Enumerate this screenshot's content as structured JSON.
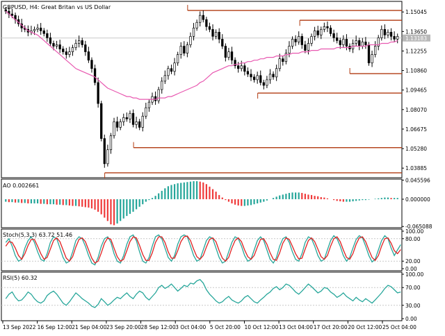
{
  "chart_data": [
    {
      "type": "candlestick",
      "title": "GBPUSD, H4:  Great Britan vs US Dollar",
      "price_ticks": [
        "1.15045",
        "1.13650",
        "1.12255",
        "1.10860",
        "1.09465",
        "1.08070",
        "1.06675",
        "1.05280",
        "1.03885"
      ],
      "current_price_label": "1.13183",
      "ylim": [
        1.032,
        1.158
      ],
      "close_series": [
        1.151,
        1.149,
        1.148,
        1.145,
        1.142,
        1.139,
        1.138,
        1.136,
        1.137,
        1.138,
        1.139,
        1.137,
        1.135,
        1.132,
        1.128,
        1.126,
        1.127,
        1.124,
        1.122,
        1.12,
        1.122,
        1.125,
        1.128,
        1.13,
        1.127,
        1.122,
        1.116,
        1.11,
        1.1,
        1.085,
        1.06,
        1.042,
        1.052,
        1.062,
        1.072,
        1.068,
        1.072,
        1.075,
        1.074,
        1.078,
        1.07,
        1.072,
        1.068,
        1.076,
        1.082,
        1.086,
        1.09,
        1.087,
        1.095,
        1.101,
        1.105,
        1.11,
        1.108,
        1.114,
        1.12,
        1.126,
        1.121,
        1.127,
        1.133,
        1.139,
        1.143,
        1.148,
        1.145,
        1.14,
        1.138,
        1.133,
        1.136,
        1.131,
        1.126,
        1.118,
        1.122,
        1.116,
        1.112,
        1.11,
        1.112,
        1.108,
        1.106,
        1.104,
        1.102,
        1.105,
        1.1,
        1.098,
        1.102,
        1.106,
        1.104,
        1.11,
        1.117,
        1.115,
        1.121,
        1.126,
        1.131,
        1.129,
        1.133,
        1.127,
        1.123,
        1.128,
        1.133,
        1.137,
        1.134,
        1.138,
        1.14,
        1.139,
        1.135,
        1.132,
        1.13,
        1.127,
        1.131,
        1.126,
        1.124,
        1.128,
        1.13,
        1.126,
        1.129,
        1.127,
        1.114,
        1.12,
        1.126,
        1.132,
        1.138,
        1.134,
        1.136,
        1.133,
        1.131,
        1.133
      ],
      "ma_series": [
        1.151,
        1.149,
        1.147,
        1.145,
        1.143,
        1.141,
        1.139,
        1.137,
        1.136,
        1.135,
        1.134,
        1.132,
        1.13,
        1.128,
        1.126,
        1.124,
        1.122,
        1.12,
        1.118,
        1.116,
        1.114,
        1.112,
        1.11,
        1.109,
        1.108,
        1.107,
        1.106,
        1.105,
        1.104,
        1.102,
        1.1,
        1.098,
        1.096,
        1.095,
        1.094,
        1.093,
        1.092,
        1.091,
        1.09,
        1.09,
        1.089,
        1.089,
        1.088,
        1.088,
        1.088,
        1.088,
        1.088,
        1.088,
        1.089,
        1.089,
        1.089,
        1.09,
        1.09,
        1.091,
        1.092,
        1.093,
        1.094,
        1.095,
        1.096,
        1.097,
        1.098,
        1.1,
        1.101,
        1.103,
        1.105,
        1.107,
        1.108,
        1.109,
        1.11,
        1.111,
        1.112,
        1.112,
        1.113,
        1.113,
        1.114,
        1.114,
        1.115,
        1.115,
        1.116,
        1.116,
        1.117,
        1.117,
        1.118,
        1.118,
        1.118,
        1.119,
        1.119,
        1.119,
        1.12,
        1.12,
        1.121,
        1.121,
        1.121,
        1.122,
        1.122,
        1.122,
        1.123,
        1.123,
        1.123,
        1.124,
        1.124,
        1.124,
        1.124,
        1.124,
        1.125,
        1.125,
        1.125,
        1.125,
        1.125,
        1.126,
        1.126,
        1.126,
        1.126,
        1.126,
        1.127,
        1.127,
        1.127,
        1.127,
        1.128,
        1.128,
        1.128,
        1.129,
        1.129,
        1.13
      ],
      "levels": [
        {
          "price": 1.1515,
          "x_start": 0.465
        },
        {
          "price": 1.1445,
          "x_start": 0.745
        },
        {
          "price": 1.1064,
          "x_start": 0.87
        },
        {
          "price": 1.0925,
          "x_start": 0.64
        },
        {
          "price": 1.0535,
          "x_start": 0.33
        },
        {
          "price": 1.0355,
          "x_start": 0.258
        }
      ]
    },
    {
      "type": "histogram",
      "title": "AO 0.002661",
      "ticks": [
        "0.045596",
        "0.000000",
        "-0.065088"
      ],
      "ylim": [
        -0.068,
        0.048
      ],
      "values": [
        -0.006,
        -0.007,
        -0.007,
        -0.008,
        -0.008,
        -0.009,
        -0.009,
        -0.01,
        -0.01,
        -0.01,
        -0.01,
        -0.011,
        -0.011,
        -0.012,
        -0.012,
        -0.012,
        -0.013,
        -0.013,
        -0.014,
        -0.014,
        -0.015,
        -0.016,
        -0.016,
        -0.017,
        -0.018,
        -0.019,
        -0.02,
        -0.022,
        -0.025,
        -0.03,
        -0.036,
        -0.044,
        -0.052,
        -0.06,
        -0.062,
        -0.058,
        -0.052,
        -0.046,
        -0.04,
        -0.035,
        -0.03,
        -0.024,
        -0.018,
        -0.012,
        -0.006,
        -0.002,
        0.003,
        0.008,
        0.014,
        0.02,
        0.026,
        0.031,
        0.034,
        0.036,
        0.038,
        0.039,
        0.04,
        0.041,
        0.042,
        0.043,
        0.043,
        0.042,
        0.04,
        0.036,
        0.03,
        0.024,
        0.018,
        0.01,
        0.004,
        -0.002,
        -0.006,
        -0.01,
        -0.013,
        -0.015,
        -0.016,
        -0.016,
        -0.015,
        -0.014,
        -0.012,
        -0.01,
        -0.008,
        -0.006,
        -0.003,
        0.0,
        0.003,
        0.006,
        0.009,
        0.011,
        0.013,
        0.015,
        0.016,
        0.016,
        0.016,
        0.015,
        0.013,
        0.011,
        0.01,
        0.008,
        0.007,
        0.005,
        0.004,
        0.002,
        0.0,
        -0.002,
        -0.004,
        -0.005,
        -0.006,
        -0.006,
        -0.006,
        -0.005,
        -0.004,
        -0.003,
        -0.002,
        -0.002,
        -0.001,
        0.0,
        0.001,
        0.002,
        0.003,
        0.004,
        0.004,
        0.003,
        0.003,
        0.003
      ]
    },
    {
      "type": "line",
      "title": "Stoch(5,3,3) 63.72 51.46",
      "ticks": [
        "100.00",
        "80.00",
        "20.00",
        "0.00"
      ],
      "ylim": [
        0,
        100
      ],
      "series": [
        {
          "values": [
            70,
            80,
            60,
            35,
            20,
            25,
            55,
            75,
            85,
            70,
            45,
            25,
            20,
            40,
            70,
            85,
            80,
            55,
            30,
            15,
            20,
            45,
            75,
            85,
            80,
            60,
            35,
            15,
            10,
            30,
            60,
            80,
            85,
            70,
            40,
            20,
            15,
            35,
            65,
            85,
            90,
            75,
            45,
            20,
            15,
            30,
            60,
            85,
            90,
            80,
            55,
            30,
            20,
            35,
            65,
            85,
            90,
            85,
            60,
            35,
            20,
            25,
            50,
            75,
            85,
            80,
            55,
            30,
            15,
            20,
            45,
            70,
            85,
            80,
            60,
            35,
            20,
            25,
            50,
            75,
            85,
            75,
            50,
            25,
            15,
            30,
            60,
            80,
            85,
            70,
            45,
            25,
            20,
            40,
            70,
            85,
            80,
            60,
            35,
            20,
            25,
            50,
            75,
            88,
            80,
            60,
            35,
            20,
            30,
            55,
            78,
            88,
            82,
            60,
            35,
            18,
            25,
            50,
            75,
            88,
            80,
            55,
            35,
            50,
            64
          ]
        },
        {
          "values": [
            60,
            72,
            70,
            55,
            35,
            25,
            40,
            62,
            78,
            78,
            60,
            40,
            25,
            30,
            52,
            75,
            82,
            72,
            50,
            28,
            20,
            32,
            58,
            78,
            82,
            72,
            50,
            28,
            15,
            20,
            42,
            68,
            82,
            78,
            55,
            32,
            20,
            25,
            48,
            72,
            85,
            82,
            62,
            38,
            22,
            22,
            42,
            70,
            85,
            85,
            70,
            45,
            28,
            28,
            48,
            72,
            85,
            87,
            75,
            52,
            32,
            25,
            35,
            58,
            78,
            82,
            72,
            48,
            28,
            20,
            30,
            55,
            75,
            82,
            72,
            50,
            32,
            25,
            35,
            58,
            78,
            80,
            65,
            42,
            25,
            22,
            42,
            68,
            82,
            78,
            60,
            40,
            26,
            28,
            52,
            75,
            82,
            72,
            52,
            32,
            25,
            35,
            60,
            80,
            85,
            72,
            50,
            30,
            25,
            40,
            65,
            82,
            85,
            72,
            50,
            30,
            22,
            35,
            60,
            80,
            82,
            68,
            48,
            40,
            51
          ]
        }
      ]
    },
    {
      "type": "line",
      "title": "RSI(5) 60.32",
      "ticks": [
        "100.00",
        "70.00",
        "30.00",
        "0.00"
      ],
      "ylim": [
        0,
        100
      ],
      "series": [
        {
          "values": [
            45,
            55,
            60,
            48,
            40,
            42,
            50,
            60,
            55,
            45,
            38,
            35,
            40,
            52,
            58,
            62,
            55,
            45,
            35,
            30,
            38,
            48,
            58,
            52,
            45,
            40,
            35,
            28,
            25,
            32,
            45,
            38,
            30,
            35,
            42,
            48,
            45,
            52,
            58,
            50,
            45,
            55,
            62,
            58,
            48,
            42,
            50,
            58,
            70,
            75,
            68,
            72,
            78,
            70,
            62,
            68,
            75,
            72,
            80,
            78,
            85,
            88,
            80,
            65,
            55,
            48,
            40,
            35,
            38,
            45,
            50,
            42,
            38,
            35,
            40,
            48,
            52,
            45,
            38,
            35,
            42,
            48,
            55,
            60,
            68,
            72,
            65,
            70,
            78,
            75,
            68,
            60,
            55,
            62,
            70,
            78,
            72,
            65,
            58,
            62,
            70,
            68,
            60,
            55,
            48,
            52,
            58,
            50,
            45,
            40,
            48,
            42,
            38,
            45,
            40,
            35,
            42,
            50,
            58,
            68,
            75,
            72,
            65,
            58,
            60
          ]
        }
      ]
    }
  ],
  "x_axis": {
    "labels": [
      "13 Sep 2022",
      "16 Sep 12:00",
      "21 Sep 04:00",
      "23 Sep 20:00",
      "28 Sep 12:00",
      "3 Oct 04:00",
      "5 Oct 20:00",
      "10 Oct 12:00",
      "13 Oct 04:00",
      "17 Oct 20:00",
      "20 Oct 12:00",
      "25 Oct 04:00"
    ]
  },
  "colors": {
    "bull_bar": "#26a69a",
    "bear_bar": "#ef3a3a",
    "ma_line": "#e858b0",
    "level_line": "#b03a10",
    "stoch_main": "#26a69a",
    "stoch_signal": "#e02020",
    "rsi_line": "#26a69a",
    "candle": "#000000",
    "grid": "#c8c8c8",
    "price_tag": "#b8b8b8"
  }
}
